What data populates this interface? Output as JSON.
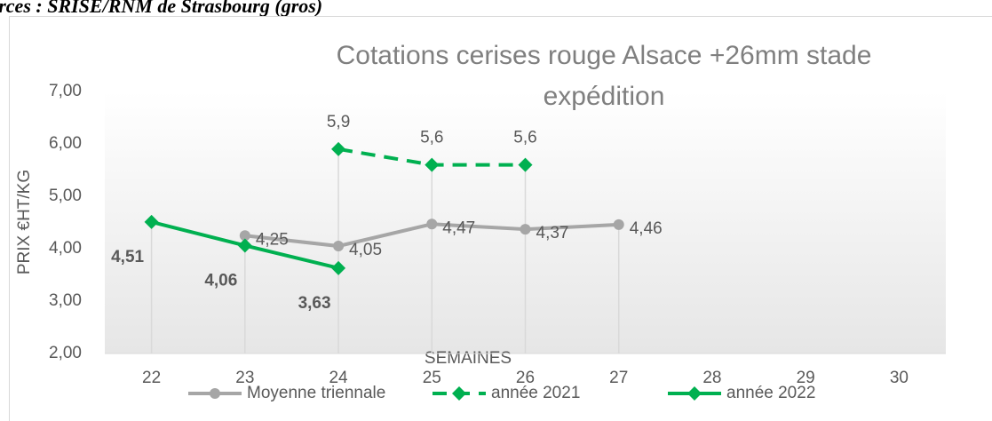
{
  "source_note": "urces : SRISE/RNM de Strasbourg (gros)",
  "chart_data": {
    "type": "line",
    "title": "Cotations cerises rouge Alsace +26mm stade expédition",
    "y_label": "PRIX €HT/KG",
    "x_label": "SEMAINES",
    "categories": [
      "22",
      "23",
      "24",
      "25",
      "26",
      "27",
      "28",
      "29",
      "30"
    ],
    "ylim": [
      2,
      7
    ],
    "yticks": [
      {
        "value": 2,
        "label": "2,00"
      },
      {
        "value": 3,
        "label": "3,00"
      },
      {
        "value": 4,
        "label": "4,00"
      },
      {
        "value": 5,
        "label": "5,00"
      },
      {
        "value": 6,
        "label": "6,00"
      },
      {
        "value": 7,
        "label": "7,00"
      }
    ],
    "drop_lines": true,
    "legend": "bottom",
    "series": [
      {
        "name": "Moyenne triennale",
        "color": "#a6a6a6",
        "marker": "circle",
        "dash": false,
        "bold_labels": false,
        "values": [
          null,
          4.25,
          4.05,
          4.47,
          4.37,
          4.46,
          null,
          null,
          null
        ],
        "value_labels": [
          null,
          "4,25",
          "4,05",
          "4,47",
          "4,37",
          "4,46",
          null,
          null,
          null
        ]
      },
      {
        "name": "année 2021",
        "color": "#00b050",
        "marker": "diamond",
        "dash": true,
        "bold_labels": false,
        "values": [
          null,
          null,
          5.9,
          5.6,
          5.6,
          null,
          null,
          null,
          null
        ],
        "value_labels": [
          null,
          null,
          "5,9",
          "5,6",
          "5,6",
          null,
          null,
          null,
          null
        ]
      },
      {
        "name": "année 2022",
        "color": "#00b050",
        "marker": "diamond",
        "dash": false,
        "bold_labels": true,
        "values": [
          4.51,
          4.06,
          3.63,
          null,
          null,
          null,
          null,
          null,
          null
        ],
        "value_labels": [
          "4,51",
          "4,06",
          "3,63",
          null,
          null,
          null,
          null,
          null,
          null
        ]
      }
    ]
  }
}
